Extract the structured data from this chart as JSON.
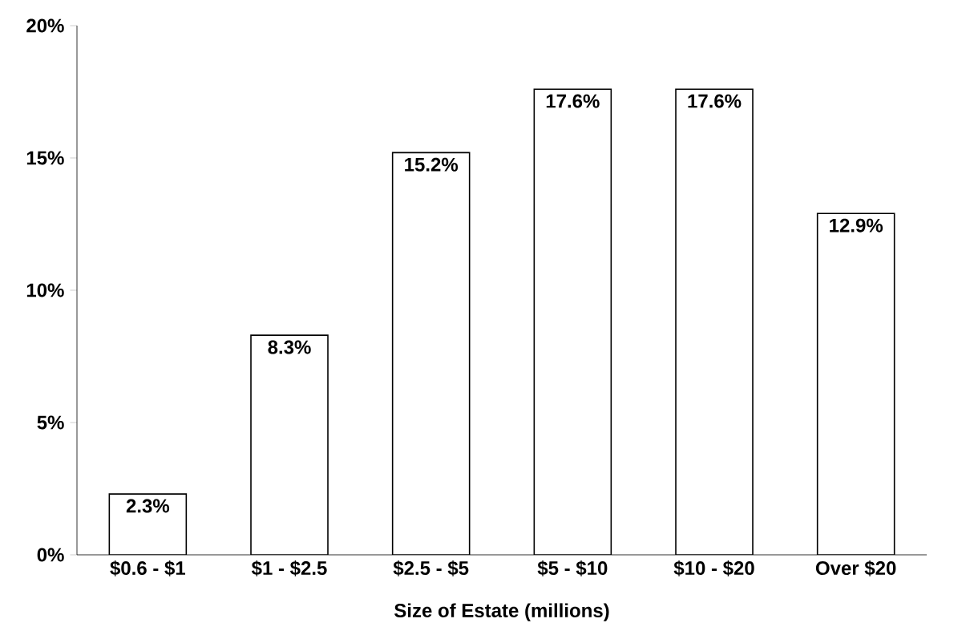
{
  "chart_data": {
    "type": "bar",
    "xlabel": "Size of Estate (millions)",
    "categories": [
      "$0.6 - $1",
      "$1 - $2.5",
      "$2.5 - $5",
      "$5 - $10",
      "$10 - $20",
      "Over $20"
    ],
    "values": [
      2.3,
      8.3,
      15.2,
      17.6,
      17.6,
      12.9
    ],
    "value_labels": [
      "2.3%",
      "8.3%",
      "15.2%",
      "17.6%",
      "17.6%",
      "12.9%"
    ],
    "color": "#ffffff",
    "ylim": [
      0,
      20
    ],
    "yticks": [
      {
        "value": 0,
        "label": "0%"
      },
      {
        "value": 5,
        "label": "5%"
      },
      {
        "value": 10,
        "label": "10%"
      },
      {
        "value": 15,
        "label": "15%"
      },
      {
        "value": 20,
        "label": "20%"
      }
    ],
    "grid": false
  }
}
